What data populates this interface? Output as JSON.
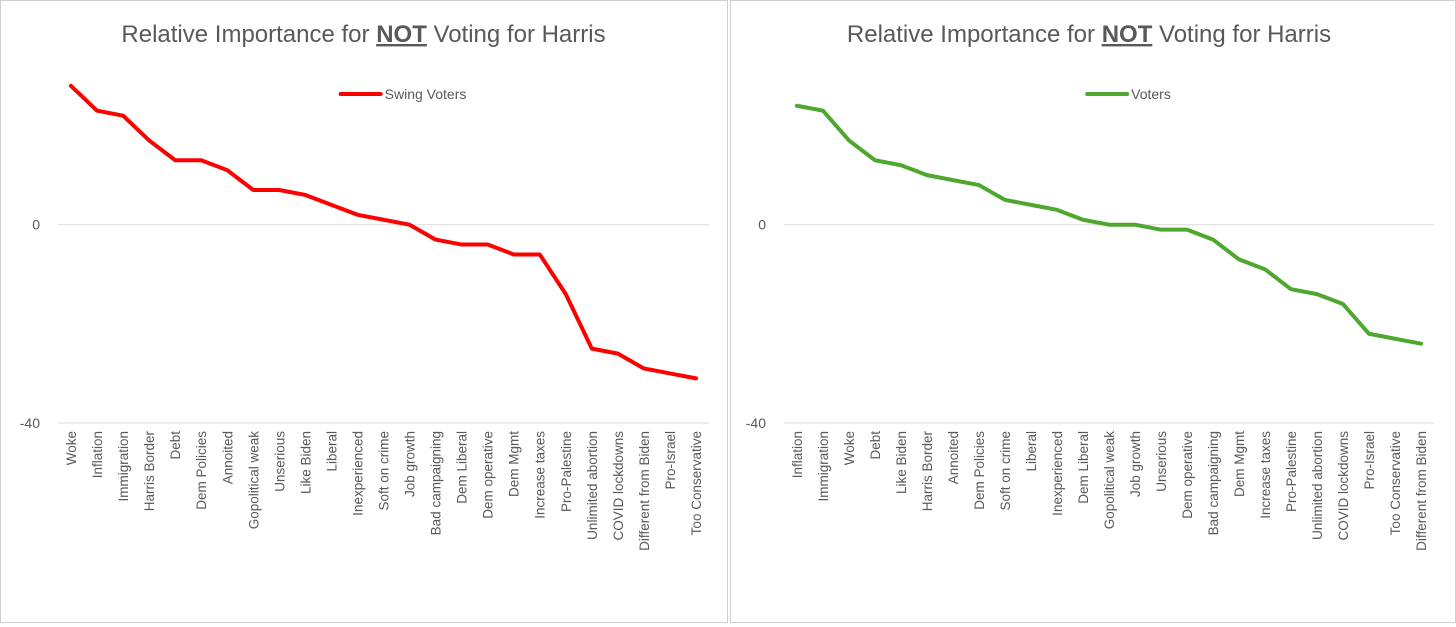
{
  "chart_data": [
    {
      "type": "line",
      "title_runs": [
        {
          "text": "Relative Importance for "
        },
        {
          "text": "NOT",
          "bold": true,
          "underline": true
        },
        {
          "text": " Voting for Harris"
        }
      ],
      "categories": [
        "Woke",
        "Inflation",
        "Immigration",
        "Harris Border",
        "Debt",
        "Dem Policies",
        "Annoited",
        "Gopolitical weak",
        "Unserious",
        "Like Biden",
        "Liberal",
        "Inexperienced",
        "Soft on crime",
        "Job growth",
        "Bad campaigning",
        "Dem Liberal",
        "Dem operative",
        "Dem Mgmt",
        "Increase taxes",
        "Pro-Palestine",
        "Unlimited abortion",
        "COVID lockdowns",
        "Different from Biden",
        "Pro-Israel",
        "Too Conservative"
      ],
      "series": [
        {
          "name": "Swing Voters",
          "color": "#ff0000",
          "values": [
            28,
            23,
            22,
            17,
            13,
            13,
            11,
            7,
            7,
            6,
            4,
            2,
            1,
            0,
            -3,
            -4,
            -4,
            -6,
            -6,
            -14,
            -25,
            -26,
            -29,
            -30,
            -31
          ]
        }
      ],
      "ylim": [
        -40,
        30
      ],
      "yticks": [
        -40,
        0
      ],
      "legend": "top"
    },
    {
      "type": "line",
      "title_runs": [
        {
          "text": "Relative Importance for "
        },
        {
          "text": "NOT",
          "bold": true,
          "underline": true
        },
        {
          "text": " Voting for Harris"
        }
      ],
      "categories": [
        "Inflation",
        "Immigration",
        "Woke",
        "Debt",
        "Like Biden",
        "Harris Border",
        "Annoited",
        "Dem Policies",
        "Soft on crime",
        "Liberal",
        "Inexperienced",
        "Dem Liberal",
        "Gopolitical weak",
        "Job growth",
        "Unserious",
        "Dem operative",
        "Bad campaigning",
        "Dem Mgmt",
        "Increase taxes",
        "Pro-Palestine",
        "Unlimited abortion",
        "COVID lockdowns",
        "Pro-Israel",
        "Too Conservative",
        "Different from Biden"
      ],
      "series": [
        {
          "name": "Voters",
          "color": "#4ea72e",
          "values": [
            24,
            23,
            17,
            13,
            12,
            10,
            9,
            8,
            5,
            4,
            3,
            1,
            0,
            0,
            -1,
            -1,
            -3,
            -7,
            -9,
            -13,
            -14,
            -16,
            -22,
            -23,
            -24
          ]
        }
      ],
      "ylim": [
        -40,
        30
      ],
      "yticks": [
        -40,
        0
      ],
      "legend": "top"
    }
  ]
}
